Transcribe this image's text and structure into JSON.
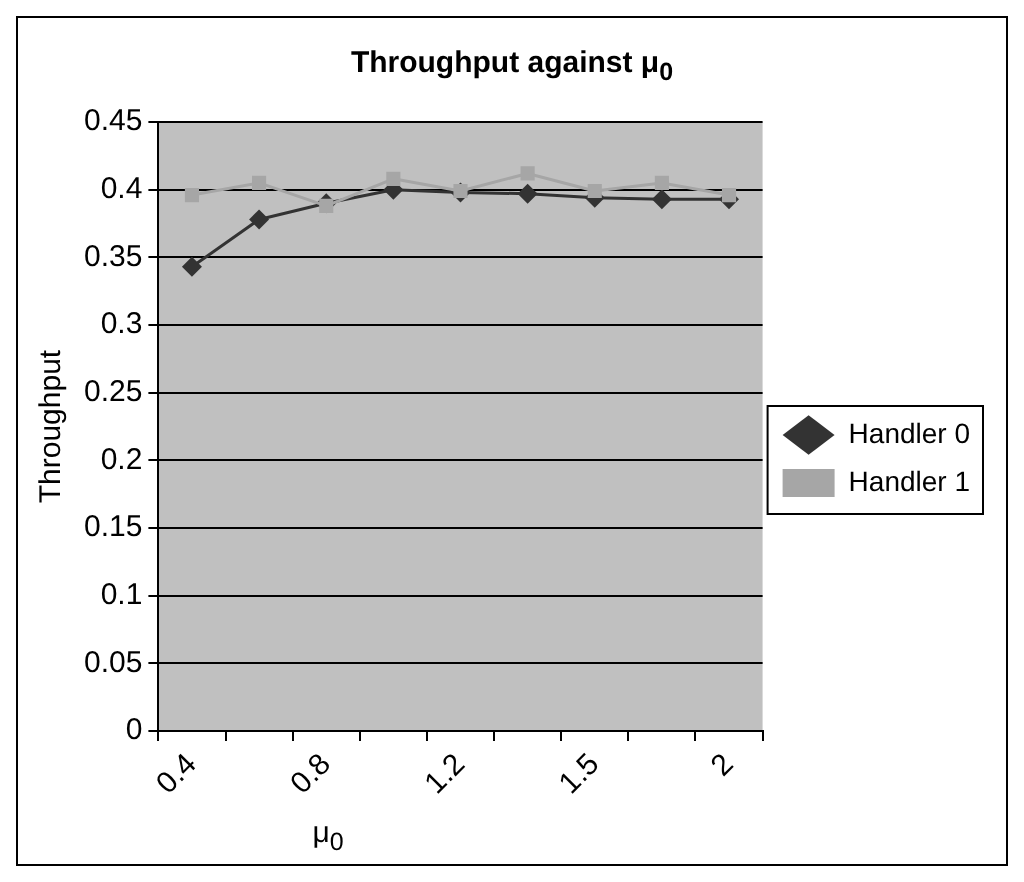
{
  "chart_data": {
    "type": "line",
    "title": "Throughput against μ$_{0}$",
    "xlabel": "μ$_{0}$",
    "ylabel": "Throughput",
    "categories": [
      "0.4",
      null,
      "0.8",
      null,
      "1.2",
      null,
      "1.5",
      null,
      "2"
    ],
    "series": [
      {
        "name": "Handler 0",
        "color": "#333333",
        "marker": "diamond",
        "values": [
          0.343,
          0.378,
          0.39,
          0.4,
          0.398,
          0.397,
          0.394,
          0.393,
          0.393
        ]
      },
      {
        "name": "Handler 1",
        "color": "#a6a6a6",
        "marker": "square",
        "values": [
          0.396,
          0.405,
          0.388,
          0.408,
          0.399,
          0.412,
          0.399,
          0.405,
          0.396
        ]
      }
    ],
    "ylim": [
      0,
      0.45
    ],
    "yticks": [
      0,
      0.05,
      0.1,
      0.15,
      0.2,
      0.25,
      0.3,
      0.35,
      0.4,
      0.45
    ],
    "grid": "y",
    "legend": "right"
  }
}
